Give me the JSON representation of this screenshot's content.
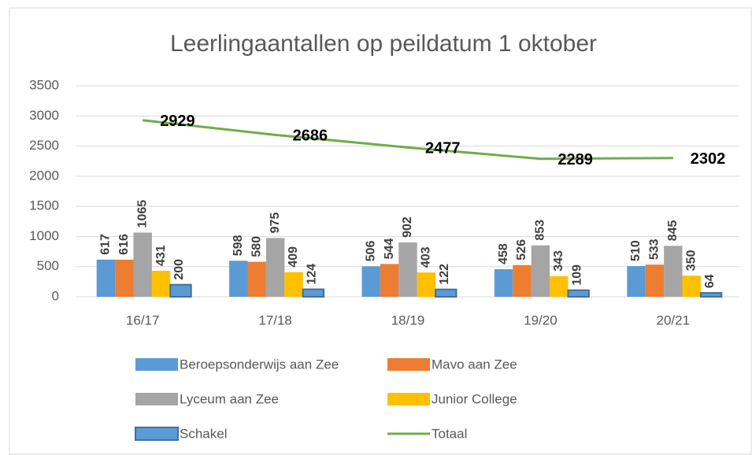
{
  "chart_data": {
    "type": "bar",
    "title": "Leerlingaantallen op peildatum 1 oktober",
    "categories": [
      "16/17",
      "17/18",
      "18/19",
      "19/20",
      "20/21"
    ],
    "series": [
      {
        "name": "Beroepsonderwijs aan Zee",
        "color": "#5b9bd5",
        "values": [
          617,
          598,
          506,
          458,
          510
        ]
      },
      {
        "name": "Mavo aan Zee",
        "color": "#ed7d31",
        "values": [
          616,
          580,
          544,
          526,
          533
        ]
      },
      {
        "name": "Lyceum aan Zee",
        "color": "#a5a5a5",
        "values": [
          1065,
          975,
          902,
          853,
          845
        ]
      },
      {
        "name": "Junior College",
        "color": "#ffc000",
        "values": [
          431,
          409,
          403,
          343,
          350
        ]
      },
      {
        "name": "Schakel",
        "color": "#5b9bd5",
        "values": [
          200,
          124,
          122,
          109,
          64
        ]
      },
      {
        "name": "Totaal",
        "color": "#70ad47",
        "type": "line",
        "values": [
          2929,
          2686,
          2477,
          2289,
          2302
        ]
      }
    ],
    "ylim": [
      0,
      3500
    ],
    "yticks": [
      0,
      500,
      1000,
      1500,
      2000,
      2500,
      3000,
      3500
    ],
    "grid": true,
    "legend": "bottom"
  }
}
